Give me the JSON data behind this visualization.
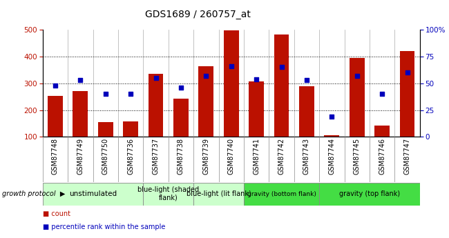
{
  "title": "GDS1689 / 260757_at",
  "samples": [
    "GSM87748",
    "GSM87749",
    "GSM87750",
    "GSM87736",
    "GSM87737",
    "GSM87738",
    "GSM87739",
    "GSM87740",
    "GSM87741",
    "GSM87742",
    "GSM87743",
    "GSM87744",
    "GSM87745",
    "GSM87746",
    "GSM87747"
  ],
  "counts": [
    253,
    270,
    155,
    157,
    335,
    243,
    365,
    497,
    307,
    483,
    290,
    107,
    395,
    143,
    420
  ],
  "percentiles": [
    48,
    53,
    40,
    40,
    55,
    46,
    57,
    66,
    54,
    65,
    53,
    19,
    57,
    40,
    60
  ],
  "groups": [
    {
      "label": "unstimulated",
      "start": 0,
      "end": 4,
      "color": "#ccffcc",
      "font_size": 7.5
    },
    {
      "label": "blue-light (shaded\nflank)",
      "start": 4,
      "end": 6,
      "color": "#ccffcc",
      "font_size": 7.0
    },
    {
      "label": "blue-light (lit flank)",
      "start": 6,
      "end": 8,
      "color": "#ccffcc",
      "font_size": 7.0
    },
    {
      "label": "gravity (bottom flank)",
      "start": 8,
      "end": 11,
      "color": "#44dd44",
      "font_size": 6.5
    },
    {
      "label": "gravity (top flank)",
      "start": 11,
      "end": 15,
      "color": "#44dd44",
      "font_size": 7.0
    }
  ],
  "bar_color": "#bb1100",
  "dot_color": "#0000bb",
  "ymin": 100,
  "ymax": 500,
  "yticks_left": [
    100,
    200,
    300,
    400,
    500
  ],
  "yticks_right": [
    0,
    25,
    50,
    75,
    100
  ],
  "sample_bg": "#cccccc",
  "plot_bg": "#ffffff"
}
